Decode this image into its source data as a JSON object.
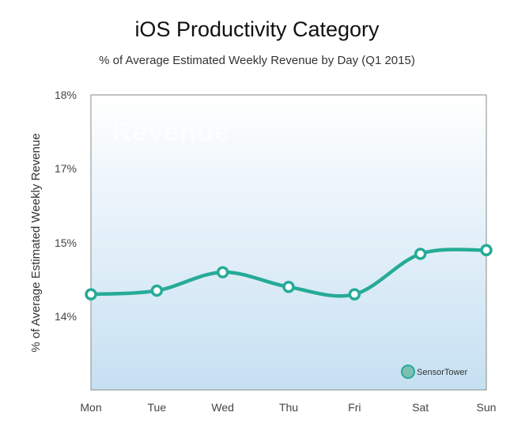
{
  "chart_data": {
    "type": "line",
    "title": "iOS Productivity Category",
    "subtitle": "% of Average Estimated Weekly Revenue by Day (Q1 2015)",
    "ylabel": "% of  Average Estimated Weekly Revenue",
    "xlabel": "",
    "categories": [
      "Mon",
      "Tue",
      "Wed",
      "Thu",
      "Fri",
      "Sat",
      "Sun"
    ],
    "series": [
      {
        "values": [
          14.3,
          14.35,
          14.6,
          14.4,
          14.3,
          14.85,
          14.9
        ]
      }
    ],
    "y_ticks": [
      {
        "value": 18,
        "label": "18%"
      },
      {
        "value": 17,
        "label": "17%"
      },
      {
        "value": 15,
        "label": "15%"
      },
      {
        "value": 14,
        "label": "14%"
      }
    ],
    "watermark": "Revenue",
    "brand": "SensorTower",
    "line_color": "#26ab97",
    "grid": false
  }
}
